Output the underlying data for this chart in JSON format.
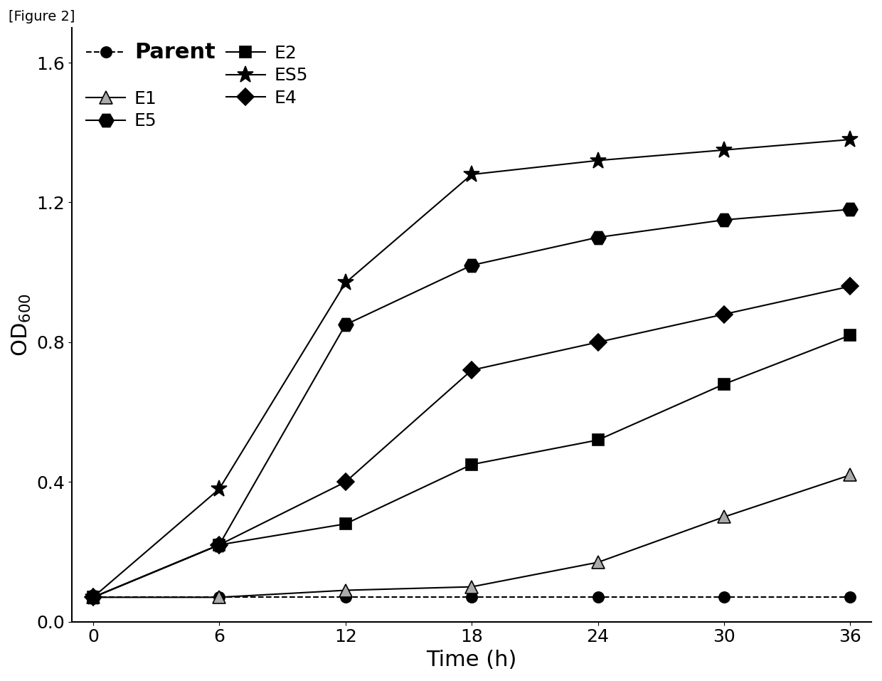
{
  "time": [
    0,
    6,
    12,
    18,
    24,
    30,
    36
  ],
  "series": {
    "Parent": {
      "values": [
        0.07,
        0.07,
        0.07,
        0.07,
        0.07,
        0.07,
        0.07
      ],
      "marker": "o",
      "markersize": 11,
      "mfc": "black",
      "mec": "black",
      "linestyle": "--",
      "linewidth": 1.5
    },
    "E1": {
      "values": [
        0.07,
        0.07,
        0.09,
        0.1,
        0.17,
        0.3,
        0.42
      ],
      "marker": "^",
      "markersize": 13,
      "mfc": "#aaaaaa",
      "mec": "black",
      "linestyle": "-",
      "linewidth": 1.5,
      "hatch": true
    },
    "E2": {
      "values": [
        0.07,
        0.22,
        0.28,
        0.45,
        0.52,
        0.68,
        0.82
      ],
      "marker": "s",
      "markersize": 12,
      "mfc": "black",
      "mec": "black",
      "linestyle": "-",
      "linewidth": 1.5
    },
    "E4": {
      "values": [
        0.07,
        0.22,
        0.4,
        0.72,
        0.8,
        0.88,
        0.96
      ],
      "marker": "D",
      "markersize": 12,
      "mfc": "black",
      "mec": "black",
      "linestyle": "-",
      "linewidth": 1.5
    },
    "E5": {
      "values": [
        0.07,
        0.22,
        0.85,
        1.02,
        1.1,
        1.15,
        1.18
      ],
      "marker": "H",
      "markersize": 15,
      "mfc": "black",
      "mec": "black",
      "linestyle": "-",
      "linewidth": 1.5
    },
    "ES5": {
      "values": [
        0.07,
        0.38,
        0.97,
        1.28,
        1.32,
        1.35,
        1.38
      ],
      "marker": "*",
      "markersize": 17,
      "mfc": "black",
      "mec": "black",
      "linestyle": "-",
      "linewidth": 1.5
    }
  },
  "xlabel": "Time (h)",
  "ylabel": "OD$_{600}$",
  "xlim": [
    -1,
    37
  ],
  "ylim": [
    0.0,
    1.7
  ],
  "yticks": [
    0.0,
    0.4,
    0.8,
    1.2,
    1.6
  ],
  "xticks": [
    0,
    6,
    12,
    18,
    24,
    30,
    36
  ],
  "figure_label": "[Figure 2]",
  "label_fontsize": 22,
  "tick_fontsize": 18,
  "legend_fontsize": 18
}
